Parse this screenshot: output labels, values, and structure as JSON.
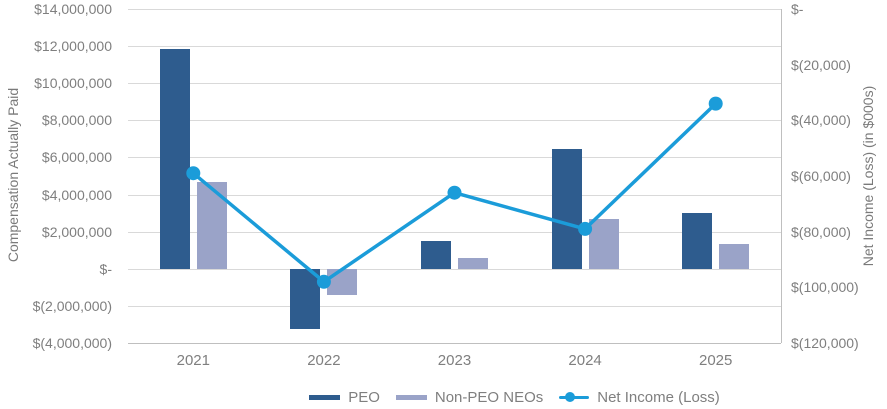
{
  "chart_data": {
    "type": "combo-bar-line",
    "categories": [
      "2021",
      "2022",
      "2023",
      "2024",
      "2025"
    ],
    "series": [
      {
        "name": "PEO",
        "type": "bar",
        "axis": "left",
        "color": "#2e5c8e",
        "values": [
          11850000,
          -3250000,
          1500000,
          6450000,
          3000000
        ]
      },
      {
        "name": "Non-PEO NEOs",
        "type": "bar",
        "axis": "left",
        "color": "#9aa3c8",
        "values": [
          4650000,
          -1400000,
          600000,
          2700000,
          1350000
        ]
      },
      {
        "name": "Net Income (Loss)",
        "type": "line",
        "axis": "right",
        "color": "#1b9cd9",
        "values": [
          -59000,
          -98000,
          -66000,
          -79000,
          -34000
        ]
      }
    ],
    "left_axis": {
      "title": "Compensation Actually Paid",
      "min": -4000000,
      "max": 14000000,
      "step": 2000000,
      "tick_labels": [
        "$14,000,000",
        "$12,000,000",
        "$10,000,000",
        "$8,000,000",
        "$6,000,000",
        "$4,000,000",
        "$2,000,000",
        "$-",
        "$(2,000,000)",
        "$(4,000,000)"
      ]
    },
    "right_axis": {
      "title": "Net Income (Loss) (in $000s)",
      "min": -120000,
      "max": 0,
      "step": 20000,
      "tick_labels": [
        "$-",
        "$(20,000)",
        "$(40,000)",
        "$(60,000)",
        "$(80,000)",
        "$(100,000)",
        "$(120,000)"
      ]
    },
    "legend": {
      "position": "bottom",
      "items": [
        "PEO",
        "Non-PEO NEOs",
        "Net Income (Loss)"
      ]
    },
    "grid": true,
    "colors": {
      "gridline": "#d9d9d9",
      "axis_line": "#bfbfbf",
      "text": "#7f7f7f"
    }
  }
}
